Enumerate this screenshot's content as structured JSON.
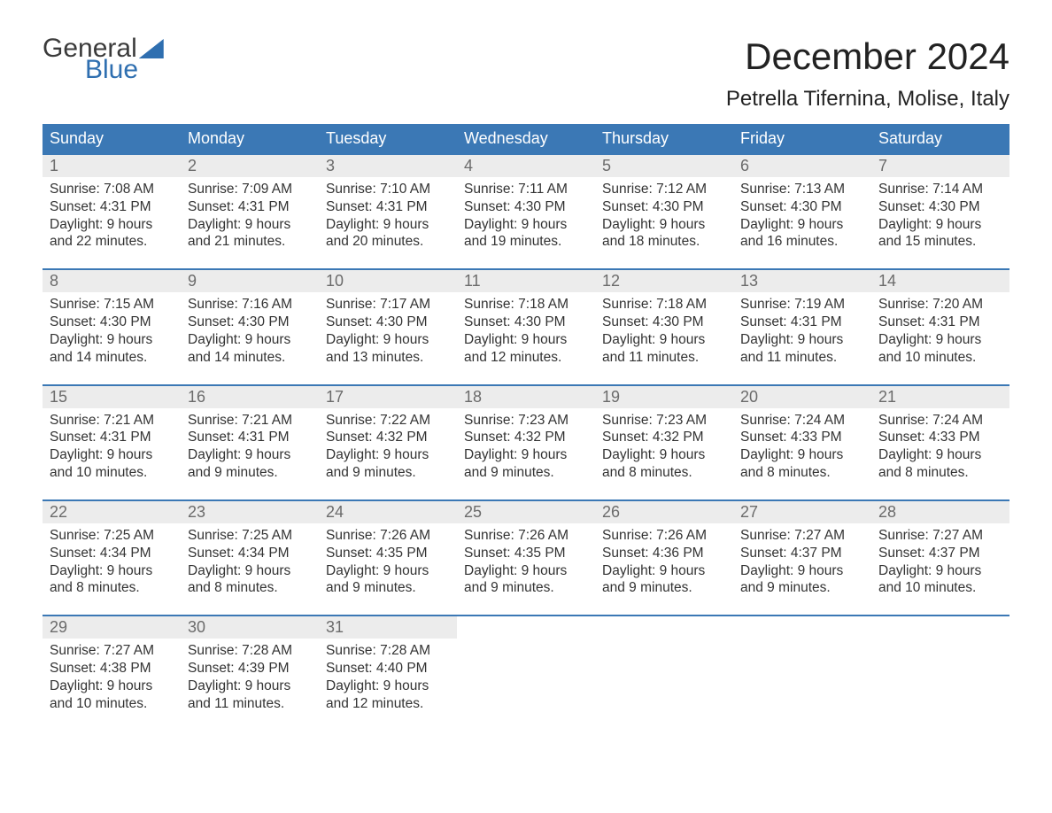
{
  "brand": {
    "word1": "General",
    "word2": "Blue",
    "word1_color": "#3b3b3b",
    "word2_color": "#2f6fb0",
    "sail_color": "#2f6fb0"
  },
  "header": {
    "month_title": "December 2024",
    "location": "Petrella Tifernina, Molise, Italy",
    "title_fontsize": 42,
    "location_fontsize": 24
  },
  "colors": {
    "header_bg": "#3b78b5",
    "header_fg": "#ffffff",
    "daynum_bg": "#ececec",
    "daynum_fg": "#6b6b6b",
    "body_fg": "#333333",
    "week_border": "#3b78b5",
    "page_bg": "#ffffff"
  },
  "layout": {
    "columns": 7,
    "weeks": 5,
    "cell_body_fontsize": 15.5,
    "dow_fontsize": 18,
    "daynum_fontsize": 18
  },
  "labels": {
    "sunrise": "Sunrise:",
    "sunset": "Sunset:",
    "daylight": "Daylight:"
  },
  "dow": [
    "Sunday",
    "Monday",
    "Tuesday",
    "Wednesday",
    "Thursday",
    "Friday",
    "Saturday"
  ],
  "weeks": [
    [
      {
        "n": "1",
        "sunrise": "7:08 AM",
        "sunset": "4:31 PM",
        "daylight": "9 hours and 22 minutes."
      },
      {
        "n": "2",
        "sunrise": "7:09 AM",
        "sunset": "4:31 PM",
        "daylight": "9 hours and 21 minutes."
      },
      {
        "n": "3",
        "sunrise": "7:10 AM",
        "sunset": "4:31 PM",
        "daylight": "9 hours and 20 minutes."
      },
      {
        "n": "4",
        "sunrise": "7:11 AM",
        "sunset": "4:30 PM",
        "daylight": "9 hours and 19 minutes."
      },
      {
        "n": "5",
        "sunrise": "7:12 AM",
        "sunset": "4:30 PM",
        "daylight": "9 hours and 18 minutes."
      },
      {
        "n": "6",
        "sunrise": "7:13 AM",
        "sunset": "4:30 PM",
        "daylight": "9 hours and 16 minutes."
      },
      {
        "n": "7",
        "sunrise": "7:14 AM",
        "sunset": "4:30 PM",
        "daylight": "9 hours and 15 minutes."
      }
    ],
    [
      {
        "n": "8",
        "sunrise": "7:15 AM",
        "sunset": "4:30 PM",
        "daylight": "9 hours and 14 minutes."
      },
      {
        "n": "9",
        "sunrise": "7:16 AM",
        "sunset": "4:30 PM",
        "daylight": "9 hours and 14 minutes."
      },
      {
        "n": "10",
        "sunrise": "7:17 AM",
        "sunset": "4:30 PM",
        "daylight": "9 hours and 13 minutes."
      },
      {
        "n": "11",
        "sunrise": "7:18 AM",
        "sunset": "4:30 PM",
        "daylight": "9 hours and 12 minutes."
      },
      {
        "n": "12",
        "sunrise": "7:18 AM",
        "sunset": "4:30 PM",
        "daylight": "9 hours and 11 minutes."
      },
      {
        "n": "13",
        "sunrise": "7:19 AM",
        "sunset": "4:31 PM",
        "daylight": "9 hours and 11 minutes."
      },
      {
        "n": "14",
        "sunrise": "7:20 AM",
        "sunset": "4:31 PM",
        "daylight": "9 hours and 10 minutes."
      }
    ],
    [
      {
        "n": "15",
        "sunrise": "7:21 AM",
        "sunset": "4:31 PM",
        "daylight": "9 hours and 10 minutes."
      },
      {
        "n": "16",
        "sunrise": "7:21 AM",
        "sunset": "4:31 PM",
        "daylight": "9 hours and 9 minutes."
      },
      {
        "n": "17",
        "sunrise": "7:22 AM",
        "sunset": "4:32 PM",
        "daylight": "9 hours and 9 minutes."
      },
      {
        "n": "18",
        "sunrise": "7:23 AM",
        "sunset": "4:32 PM",
        "daylight": "9 hours and 9 minutes."
      },
      {
        "n": "19",
        "sunrise": "7:23 AM",
        "sunset": "4:32 PM",
        "daylight": "9 hours and 8 minutes."
      },
      {
        "n": "20",
        "sunrise": "7:24 AM",
        "sunset": "4:33 PM",
        "daylight": "9 hours and 8 minutes."
      },
      {
        "n": "21",
        "sunrise": "7:24 AM",
        "sunset": "4:33 PM",
        "daylight": "9 hours and 8 minutes."
      }
    ],
    [
      {
        "n": "22",
        "sunrise": "7:25 AM",
        "sunset": "4:34 PM",
        "daylight": "9 hours and 8 minutes."
      },
      {
        "n": "23",
        "sunrise": "7:25 AM",
        "sunset": "4:34 PM",
        "daylight": "9 hours and 8 minutes."
      },
      {
        "n": "24",
        "sunrise": "7:26 AM",
        "sunset": "4:35 PM",
        "daylight": "9 hours and 9 minutes."
      },
      {
        "n": "25",
        "sunrise": "7:26 AM",
        "sunset": "4:35 PM",
        "daylight": "9 hours and 9 minutes."
      },
      {
        "n": "26",
        "sunrise": "7:26 AM",
        "sunset": "4:36 PM",
        "daylight": "9 hours and 9 minutes."
      },
      {
        "n": "27",
        "sunrise": "7:27 AM",
        "sunset": "4:37 PM",
        "daylight": "9 hours and 9 minutes."
      },
      {
        "n": "28",
        "sunrise": "7:27 AM",
        "sunset": "4:37 PM",
        "daylight": "9 hours and 10 minutes."
      }
    ],
    [
      {
        "n": "29",
        "sunrise": "7:27 AM",
        "sunset": "4:38 PM",
        "daylight": "9 hours and 10 minutes."
      },
      {
        "n": "30",
        "sunrise": "7:28 AM",
        "sunset": "4:39 PM",
        "daylight": "9 hours and 11 minutes."
      },
      {
        "n": "31",
        "sunrise": "7:28 AM",
        "sunset": "4:40 PM",
        "daylight": "9 hours and 12 minutes."
      },
      null,
      null,
      null,
      null
    ]
  ]
}
